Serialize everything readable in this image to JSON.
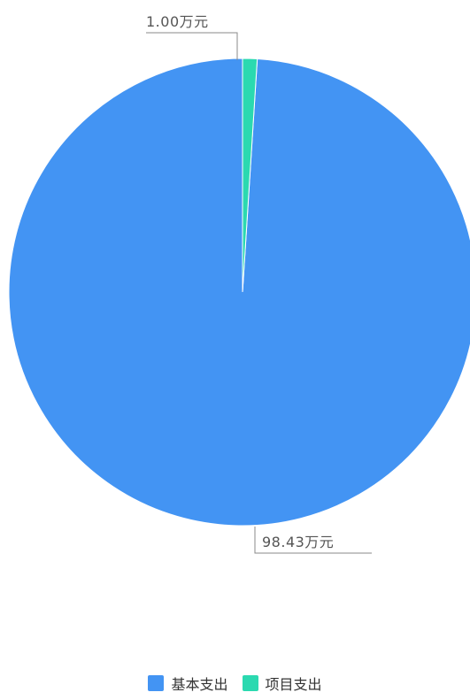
{
  "chart_data": {
    "type": "pie",
    "title": "",
    "unit": "万元",
    "legend_position": "bottom",
    "slices": [
      {
        "name": "基本支出",
        "value": 98.43,
        "label": "98.43万元",
        "color": "#4394F3"
      },
      {
        "name": "项目支出",
        "value": 1.0,
        "label": "1.00万元",
        "color": "#2BD9B0"
      }
    ]
  }
}
